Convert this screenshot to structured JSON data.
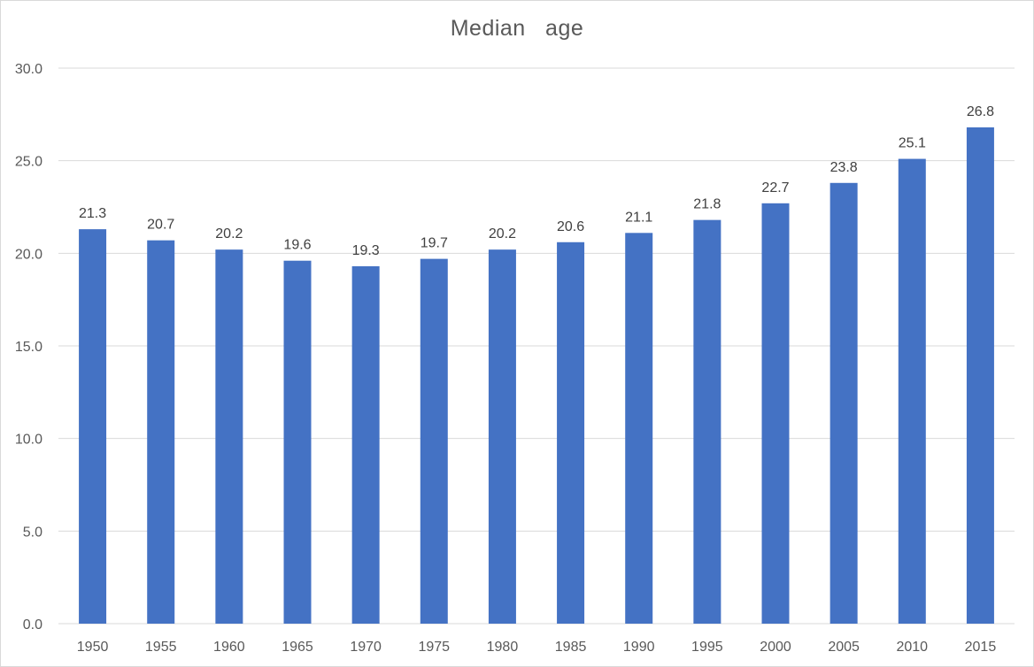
{
  "chart_data": {
    "type": "bar",
    "title": "Median   age",
    "categories": [
      "1950",
      "1955",
      "1960",
      "1965",
      "1970",
      "1975",
      "1980",
      "1985",
      "1990",
      "1995",
      "2000",
      "2005",
      "2010",
      "2015"
    ],
    "values": [
      21.3,
      20.7,
      20.2,
      19.6,
      19.3,
      19.7,
      20.2,
      20.6,
      21.1,
      21.8,
      22.7,
      23.8,
      25.1,
      26.8
    ],
    "data_labels": [
      "21.3",
      "20.7",
      "20.2",
      "19.6",
      "19.3",
      "19.7",
      "20.2",
      "20.6",
      "21.1",
      "21.8",
      "22.7",
      "23.8",
      "25.1",
      "26.8"
    ],
    "y_ticks": [
      "0.0",
      "5.0",
      "10.0",
      "15.0",
      "20.0",
      "25.0",
      "30.0"
    ],
    "ylim": [
      0,
      30
    ],
    "xlabel": "",
    "ylabel": "",
    "grid": true,
    "legend": "none",
    "colors": {
      "bar": "#4472c4",
      "grid": "#d9d9d9",
      "tick_text": "#595959",
      "label_text": "#404040"
    }
  }
}
